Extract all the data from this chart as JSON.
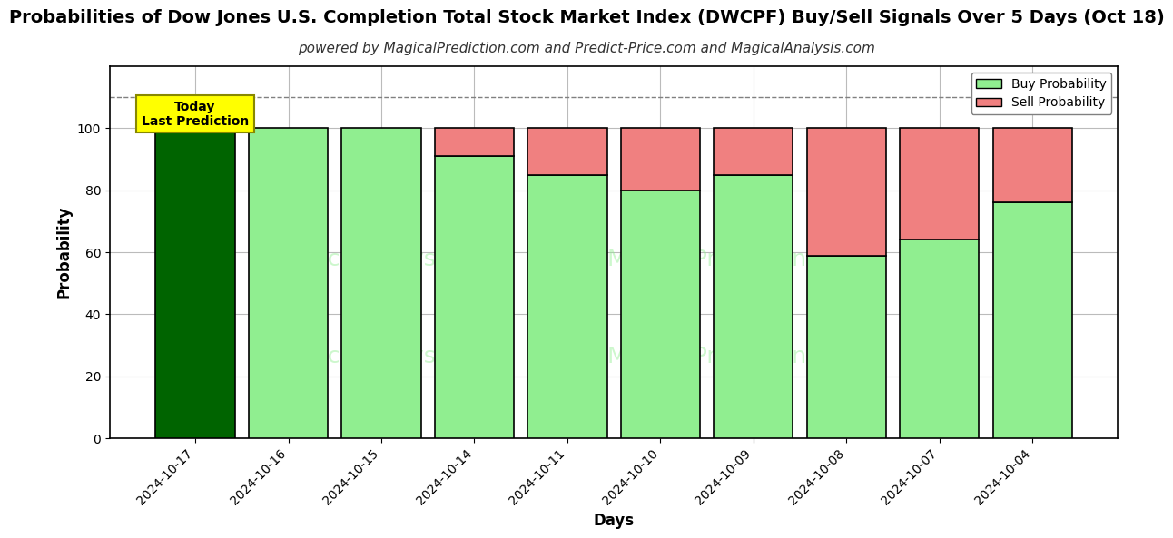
{
  "title": "Probabilities of Dow Jones U.S. Completion Total Stock Market Index (DWCPF) Buy/Sell Signals Over 5 Days (Oct 18)",
  "subtitle": "powered by MagicalPrediction.com and Predict-Price.com and MagicalAnalysis.com",
  "xlabel": "Days",
  "ylabel": "Probability",
  "categories": [
    "2024-10-17",
    "2024-10-16",
    "2024-10-15",
    "2024-10-14",
    "2024-10-11",
    "2024-10-10",
    "2024-10-09",
    "2024-10-08",
    "2024-10-07",
    "2024-10-04"
  ],
  "buy_values": [
    100,
    100,
    100,
    91,
    85,
    80,
    85,
    59,
    64,
    76
  ],
  "sell_values": [
    0,
    0,
    0,
    9,
    15,
    20,
    15,
    41,
    36,
    24
  ],
  "today_bar_color": "#006400",
  "buy_color": "#90EE90",
  "sell_color": "#F08080",
  "legend_buy_color": "#90EE90",
  "legend_sell_color": "#F08080",
  "today_label_bg": "#FFFF00",
  "today_label_text": "Today\nLast Prediction",
  "ylim": [
    0,
    120
  ],
  "yticks": [
    0,
    20,
    40,
    60,
    80,
    100
  ],
  "grid_color": "#bbbbbb",
  "bar_edgecolor": "#000000",
  "title_fontsize": 14,
  "subtitle_fontsize": 11,
  "axis_label_fontsize": 12,
  "tick_fontsize": 10,
  "bar_width": 0.85,
  "dashed_line_y": 110,
  "watermark1": "MagicalAnalysis.com",
  "watermark2": "MagicalPrediction.com",
  "watermark_color": "#90EE90",
  "watermark_alpha": 0.45,
  "watermark_fontsize": 18
}
